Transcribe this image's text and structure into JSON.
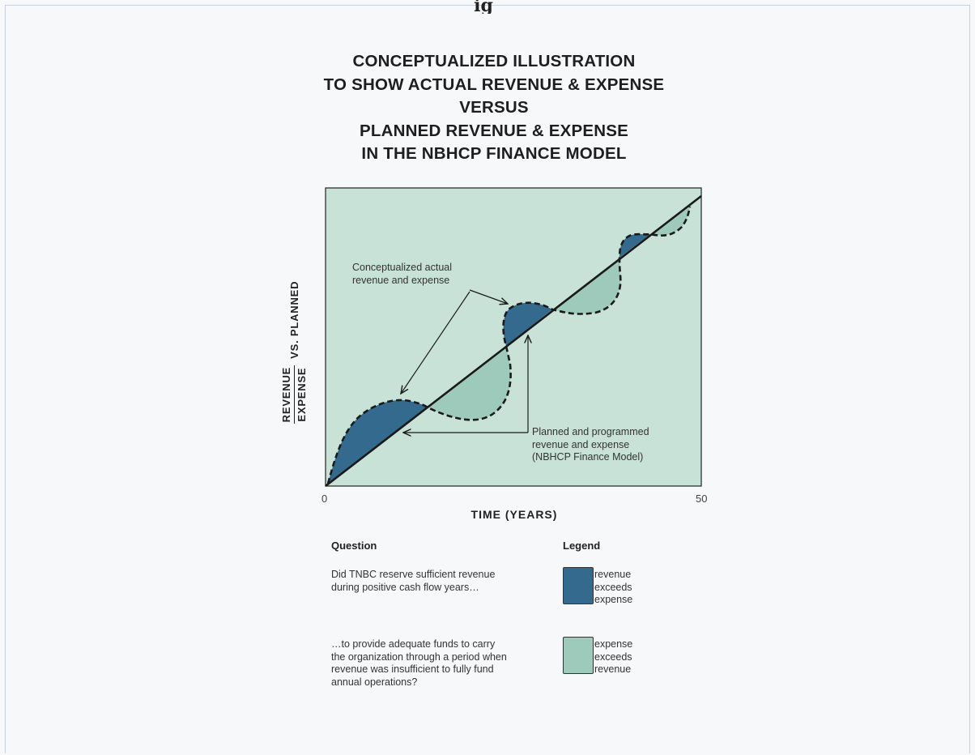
{
  "header": {
    "top_clip": "ig"
  },
  "title_lines": [
    "CONCEPTUALIZED ILLUSTRATION",
    "TO SHOW ACTUAL REVENUE & EXPENSE",
    "VERSUS",
    "PLANNED REVENUE & EXPENSE",
    "IN THE NBHCP FINANCE MODEL"
  ],
  "axes": {
    "y_label_numerator": "REVENUE",
    "y_label_denominator": "EXPENSE",
    "y_label_suffix": "VS. PLANNED",
    "x_label": "TIME (YEARS)",
    "x_min": "0",
    "x_max": "50"
  },
  "annotations": {
    "actual_lines": [
      "Conceptualized actual",
      "revenue and expense"
    ],
    "planned_lines": [
      "Planned and programmed",
      "revenue and expense",
      "(NBHCP Finance Model)"
    ]
  },
  "question": {
    "heading": "Question",
    "q1_lines": [
      "Did TNBC reserve sufficient revenue",
      "during positive cash flow years…"
    ],
    "q2_lines": [
      "…to provide adequate funds to carry",
      "the organization through a period when",
      "revenue was insufficient to fully fund",
      "annual operations?"
    ]
  },
  "legend": {
    "heading": "Legend",
    "items": [
      {
        "lines": [
          "revenue",
          "exceeds",
          "expense"
        ],
        "color": "#356a8f"
      },
      {
        "lines": [
          "expense",
          "exceeds",
          "revenue"
        ],
        "color": "#9ecabb"
      }
    ]
  },
  "colors": {
    "plot_bg": "#c8e2d8",
    "revenue_exceeds": "#356a8f",
    "expense_exceeds": "#9ecabb",
    "ink": "#1a1a1a"
  }
}
